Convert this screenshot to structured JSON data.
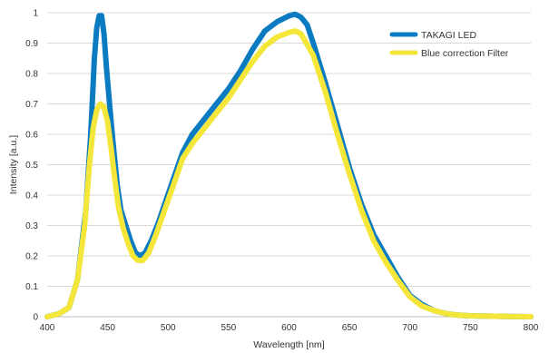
{
  "chart_data": {
    "type": "line",
    "title": "",
    "xlabel": "Wavelength [nm]",
    "ylabel": "Intensity [a.u.]",
    "xlim": [
      400,
      800
    ],
    "ylim": [
      0,
      1
    ],
    "x_ticks": [
      400,
      450,
      500,
      550,
      600,
      650,
      700,
      750,
      800
    ],
    "y_ticks": [
      0,
      0.1,
      0.2,
      0.3,
      0.4,
      0.5,
      0.6,
      0.7,
      0.8,
      0.9,
      1
    ],
    "x_tick_labels": [
      "400",
      "450",
      "500",
      "550",
      "600",
      "650",
      "700",
      "750",
      "800"
    ],
    "y_tick_labels": [
      "0",
      "0.1",
      "0.2",
      "0.3",
      "0.4",
      "0.5",
      "0.6",
      "0.7",
      "0.8",
      "0.9",
      "1"
    ],
    "grid": "horizontal",
    "legend_position": "top-right",
    "series": [
      {
        "name": "TAKAGI LED",
        "color": "#0a7bc1",
        "points": [
          [
            400,
            0
          ],
          [
            410,
            0.01
          ],
          [
            418,
            0.03
          ],
          [
            425,
            0.12
          ],
          [
            432,
            0.35
          ],
          [
            436,
            0.6
          ],
          [
            439,
            0.85
          ],
          [
            441,
            0.95
          ],
          [
            443,
            0.99
          ],
          [
            445,
            0.99
          ],
          [
            447,
            0.93
          ],
          [
            449,
            0.82
          ],
          [
            452,
            0.68
          ],
          [
            455,
            0.55
          ],
          [
            458,
            0.43
          ],
          [
            461,
            0.35
          ],
          [
            465,
            0.3
          ],
          [
            469,
            0.25
          ],
          [
            473,
            0.21
          ],
          [
            477,
            0.2
          ],
          [
            481,
            0.21
          ],
          [
            486,
            0.25
          ],
          [
            492,
            0.31
          ],
          [
            498,
            0.38
          ],
          [
            505,
            0.46
          ],
          [
            512,
            0.54
          ],
          [
            520,
            0.6
          ],
          [
            530,
            0.65
          ],
          [
            540,
            0.7
          ],
          [
            550,
            0.75
          ],
          [
            560,
            0.81
          ],
          [
            570,
            0.88
          ],
          [
            580,
            0.94
          ],
          [
            590,
            0.97
          ],
          [
            600,
            0.99
          ],
          [
            605,
            0.995
          ],
          [
            610,
            0.985
          ],
          [
            615,
            0.96
          ],
          [
            620,
            0.9
          ],
          [
            630,
            0.77
          ],
          [
            640,
            0.63
          ],
          [
            650,
            0.49
          ],
          [
            660,
            0.37
          ],
          [
            670,
            0.27
          ],
          [
            680,
            0.2
          ],
          [
            690,
            0.13
          ],
          [
            700,
            0.07
          ],
          [
            710,
            0.04
          ],
          [
            720,
            0.02
          ],
          [
            730,
            0.01
          ],
          [
            740,
            0.005
          ],
          [
            750,
            0.003
          ],
          [
            760,
            0.002
          ],
          [
            780,
            0.001
          ],
          [
            800,
            0
          ]
        ]
      },
      {
        "name": "Blue correction Filter",
        "color": "#f5e63a",
        "points": [
          [
            400,
            0
          ],
          [
            410,
            0.01
          ],
          [
            418,
            0.03
          ],
          [
            425,
            0.12
          ],
          [
            431,
            0.3
          ],
          [
            435,
            0.5
          ],
          [
            438,
            0.62
          ],
          [
            441,
            0.68
          ],
          [
            444,
            0.7
          ],
          [
            447,
            0.69
          ],
          [
            450,
            0.64
          ],
          [
            453,
            0.55
          ],
          [
            456,
            0.45
          ],
          [
            459,
            0.36
          ],
          [
            463,
            0.29
          ],
          [
            467,
            0.24
          ],
          [
            471,
            0.2
          ],
          [
            475,
            0.185
          ],
          [
            479,
            0.185
          ],
          [
            484,
            0.21
          ],
          [
            490,
            0.27
          ],
          [
            497,
            0.35
          ],
          [
            505,
            0.44
          ],
          [
            512,
            0.52
          ],
          [
            520,
            0.57
          ],
          [
            530,
            0.62
          ],
          [
            540,
            0.67
          ],
          [
            550,
            0.72
          ],
          [
            560,
            0.78
          ],
          [
            570,
            0.84
          ],
          [
            580,
            0.89
          ],
          [
            590,
            0.92
          ],
          [
            600,
            0.935
          ],
          [
            605,
            0.94
          ],
          [
            610,
            0.93
          ],
          [
            620,
            0.86
          ],
          [
            630,
            0.74
          ],
          [
            640,
            0.6
          ],
          [
            650,
            0.47
          ],
          [
            660,
            0.35
          ],
          [
            670,
            0.25
          ],
          [
            680,
            0.18
          ],
          [
            690,
            0.12
          ],
          [
            700,
            0.065
          ],
          [
            710,
            0.035
          ],
          [
            720,
            0.02
          ],
          [
            730,
            0.01
          ],
          [
            740,
            0.005
          ],
          [
            750,
            0.003
          ],
          [
            760,
            0.002
          ],
          [
            780,
            0.001
          ],
          [
            800,
            0
          ]
        ]
      }
    ]
  }
}
